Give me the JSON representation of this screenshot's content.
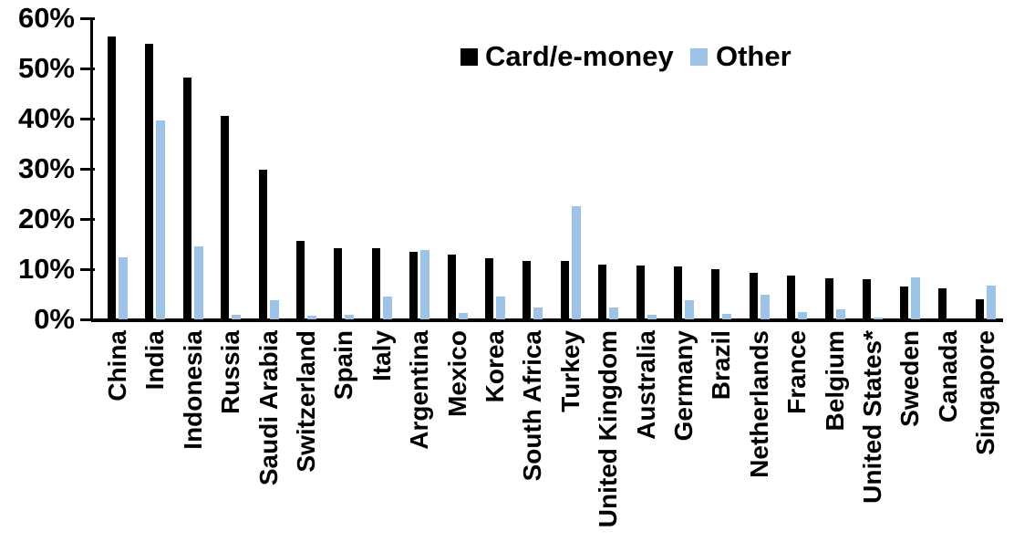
{
  "chart_data": {
    "type": "bar",
    "title": "",
    "xlabel": "",
    "ylabel": "",
    "ylim": [
      0,
      60
    ],
    "y_ticks": [
      "0%",
      "10%",
      "20%",
      "30%",
      "40%",
      "50%",
      "60%"
    ],
    "grid": false,
    "legend_position": "top-center",
    "categories": [
      "China",
      "India",
      "Indonesia",
      "Russia",
      "Saudi Arabia",
      "Switzerland",
      "Spain",
      "Italy",
      "Argentina",
      "Mexico",
      "Korea",
      "South Africa",
      "Turkey",
      "United Kingdom",
      "Australia",
      "Germany",
      "Brazil",
      "Netherlands",
      "France",
      "Belgium",
      "United States*",
      "Sweden",
      "Canada",
      "Singapore"
    ],
    "series": [
      {
        "name": "Card/e-money",
        "color": "#000000",
        "values": [
          56.3,
          55.0,
          48.2,
          40.6,
          29.9,
          15.6,
          14.2,
          14.1,
          13.4,
          12.9,
          12.2,
          11.7,
          11.6,
          11.0,
          10.7,
          10.5,
          10.0,
          9.2,
          8.7,
          8.1,
          8.0,
          6.6,
          6.1,
          4.0
        ]
      },
      {
        "name": "Other",
        "color": "#9DC3E6",
        "values": [
          12.3,
          39.7,
          14.5,
          1.0,
          3.9,
          0.8,
          1.0,
          4.6,
          13.8,
          1.3,
          4.6,
          2.4,
          22.5,
          2.4,
          1.0,
          3.8,
          1.1,
          4.9,
          1.5,
          2.0,
          0.3,
          8.3,
          0.0,
          6.8
        ]
      }
    ]
  }
}
